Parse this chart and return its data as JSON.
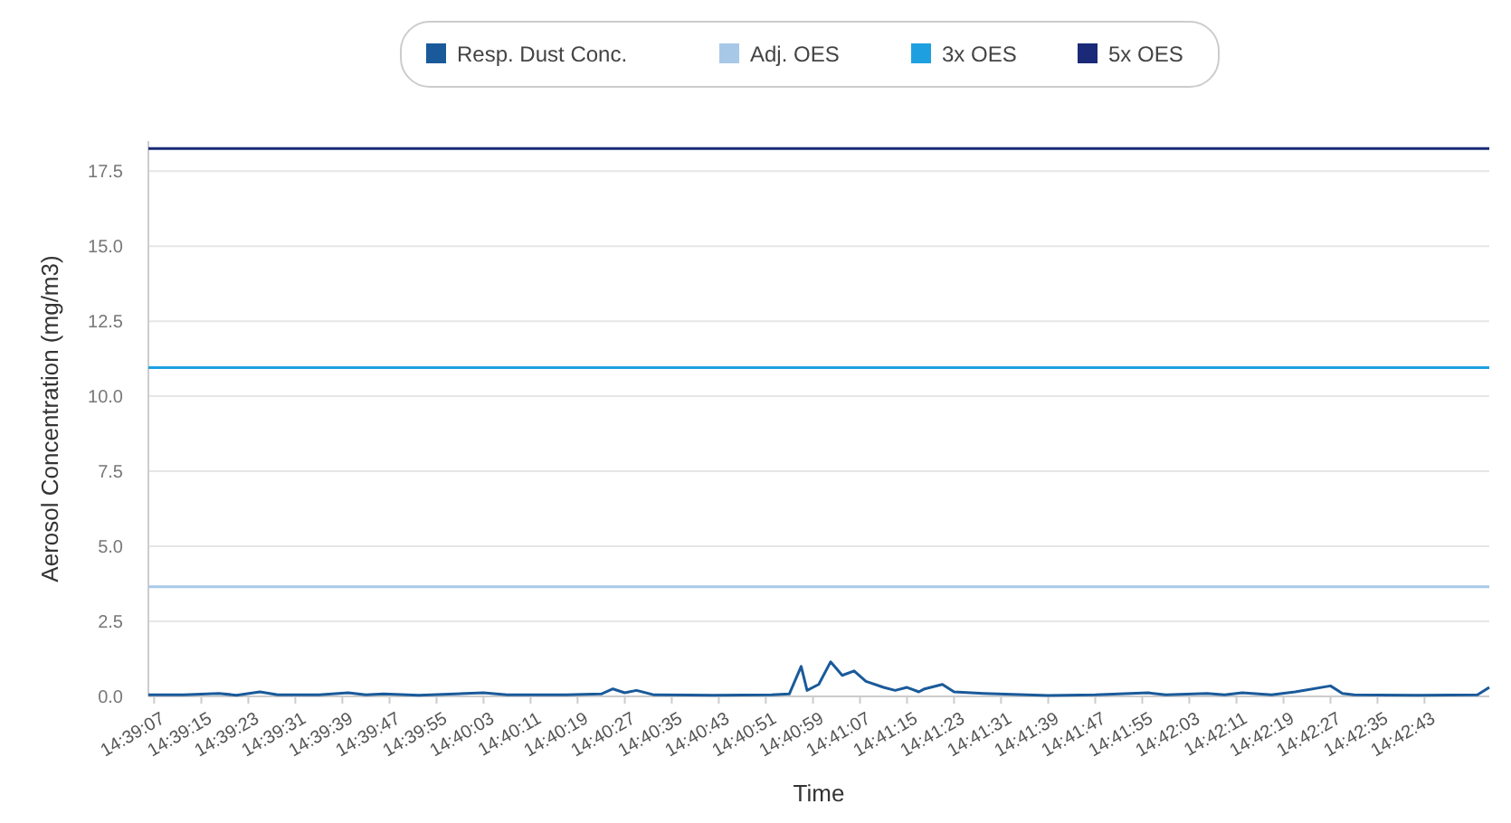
{
  "chart_data": {
    "type": "line",
    "xlabel": "Time",
    "ylabel": "Aerosol Concentration (mg/m3)",
    "xlim": [
      14.65167,
      14.715
    ],
    "xticks": [
      {
        "value": 14.65194,
        "label": "14:39:07"
      },
      {
        "value": 14.65417,
        "label": "14:39:15"
      },
      {
        "value": 14.65639,
        "label": "14:39:23"
      },
      {
        "value": 14.65861,
        "label": "14:39:31"
      },
      {
        "value": 14.66083,
        "label": "14:39:39"
      },
      {
        "value": 14.66306,
        "label": "14:39:47"
      },
      {
        "value": 14.66528,
        "label": "14:39:55"
      },
      {
        "value": 14.6675,
        "label": "14:40:03"
      },
      {
        "value": 14.66972,
        "label": "14:40:11"
      },
      {
        "value": 14.67194,
        "label": "14:40:19"
      },
      {
        "value": 14.67417,
        "label": "14:40:27"
      },
      {
        "value": 14.67639,
        "label": "14:40:35"
      },
      {
        "value": 14.67861,
        "label": "14:40:43"
      },
      {
        "value": 14.68083,
        "label": "14:40:51"
      },
      {
        "value": 14.68306,
        "label": "14:40:59"
      },
      {
        "value": 14.68528,
        "label": "14:41:07"
      },
      {
        "value": 14.6875,
        "label": "14:41:15"
      },
      {
        "value": 14.68972,
        "label": "14:41:23"
      },
      {
        "value": 14.69194,
        "label": "14:41:31"
      },
      {
        "value": 14.69417,
        "label": "14:41:39"
      },
      {
        "value": 14.69639,
        "label": "14:41:47"
      },
      {
        "value": 14.69861,
        "label": "14:41:55"
      },
      {
        "value": 14.70083,
        "label": "14:42:03"
      },
      {
        "value": 14.70306,
        "label": "14:42:11"
      },
      {
        "value": 14.70528,
        "label": "14:42:19"
      },
      {
        "value": 14.7075,
        "label": "14:42:27"
      },
      {
        "value": 14.70972,
        "label": "14:42:35"
      },
      {
        "value": 14.71194,
        "label": "14:42:43"
      }
    ],
    "ylim": [
      0,
      18.5
    ],
    "yticks": [
      {
        "value": 0,
        "label": "0.0"
      },
      {
        "value": 2.5,
        "label": "2.5"
      },
      {
        "value": 5,
        "label": "5.0"
      },
      {
        "value": 7.5,
        "label": "7.5"
      },
      {
        "value": 10,
        "label": "10.0"
      },
      {
        "value": 12.5,
        "label": "12.5"
      },
      {
        "value": 15,
        "label": "15.0"
      },
      {
        "value": 17.5,
        "label": "17.5"
      }
    ],
    "grid": "y",
    "legend": "top",
    "marker": "none",
    "line_style": "solid",
    "series": [
      {
        "name": "Resp. Dust Conc.",
        "color": "#1a5a9a",
        "x": [
          14.65167,
          14.65333,
          14.655,
          14.65583,
          14.65694,
          14.65778,
          14.65972,
          14.66111,
          14.66194,
          14.66278,
          14.66444,
          14.6675,
          14.66861,
          14.67139,
          14.67306,
          14.67361,
          14.67417,
          14.67472,
          14.67556,
          14.67833,
          14.68111,
          14.68194,
          14.6825,
          14.68278,
          14.68333,
          14.68389,
          14.68444,
          14.685,
          14.68556,
          14.68639,
          14.68694,
          14.6875,
          14.68806,
          14.68833,
          14.68917,
          14.68972,
          14.69111,
          14.69417,
          14.69639,
          14.69889,
          14.69972,
          14.70167,
          14.7025,
          14.70333,
          14.70472,
          14.70583,
          14.7075,
          14.70806,
          14.70861,
          14.71167,
          14.71444,
          14.715
        ],
        "values": [
          0.05,
          0.05,
          0.1,
          0.04,
          0.15,
          0.05,
          0.05,
          0.12,
          0.05,
          0.08,
          0.04,
          0.12,
          0.05,
          0.05,
          0.08,
          0.25,
          0.12,
          0.2,
          0.05,
          0.04,
          0.05,
          0.08,
          1.0,
          0.2,
          0.4,
          1.15,
          0.7,
          0.85,
          0.5,
          0.3,
          0.2,
          0.3,
          0.15,
          0.25,
          0.4,
          0.15,
          0.1,
          0.03,
          0.05,
          0.12,
          0.05,
          0.1,
          0.05,
          0.12,
          0.05,
          0.15,
          0.35,
          0.1,
          0.05,
          0.04,
          0.05,
          0.3
        ]
      },
      {
        "name": "Adj. OES",
        "color": "#a8c8e8",
        "x": [
          14.65167,
          14.715
        ],
        "values": [
          3.65,
          3.65
        ]
      },
      {
        "name": "3x OES",
        "color": "#1ea0e0",
        "x": [
          14.65167,
          14.715
        ],
        "values": [
          10.95,
          10.95
        ]
      },
      {
        "name": "5x OES",
        "color": "#1a2a78",
        "x": [
          14.65167,
          14.715
        ],
        "values": [
          18.25,
          18.25
        ]
      }
    ]
  }
}
